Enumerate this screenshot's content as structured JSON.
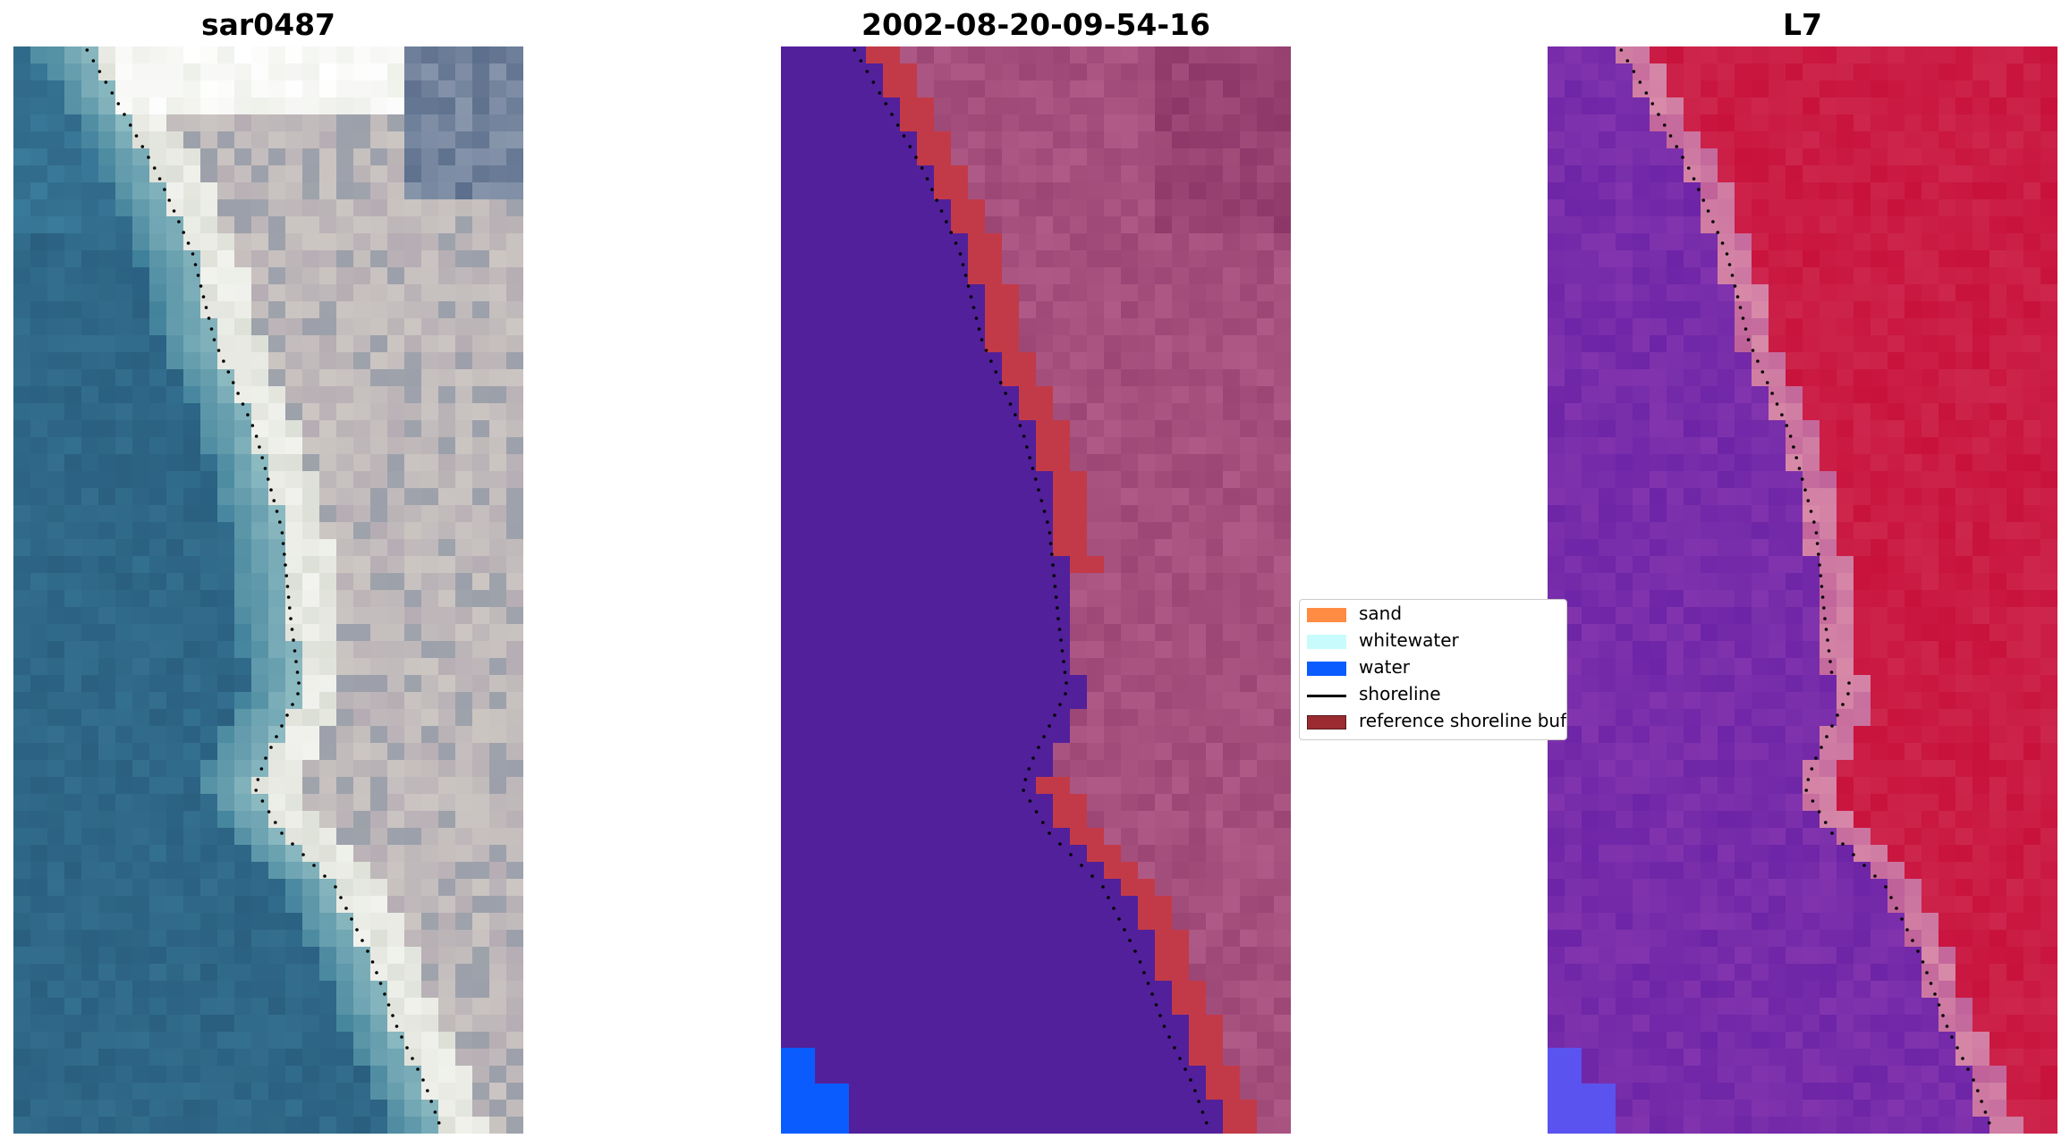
{
  "panels": [
    {
      "title": "sar0487",
      "kind": "rgb"
    },
    {
      "title": "2002-08-20-09-54-16",
      "kind": "classified"
    },
    {
      "title": "L7",
      "kind": "mndwi"
    }
  ],
  "legend": {
    "items": [
      {
        "label": "sand",
        "type": "patch",
        "color": "#ff8c42"
      },
      {
        "label": "whitewater",
        "type": "patch",
        "color": "#c8fcfc"
      },
      {
        "label": "water",
        "type": "patch",
        "color": "#0b5cff"
      },
      {
        "label": "shoreline",
        "type": "line",
        "color": "#000000"
      },
      {
        "label": "reference shoreline buffer",
        "type": "patch",
        "color": "#9b2b30"
      }
    ]
  },
  "colors": {
    "sea_rgb": "#2d6a8e",
    "beach_rgb": "#e9ece6",
    "land_rgb": "#b9b0b4",
    "water_class": "#52209a",
    "land_class": "#b05a87",
    "buffer_class": "#c23a48",
    "mndwi_water": "#7a2aa3",
    "mndwi_land": "#c8123c",
    "corner_water": "#0b5cff"
  }
}
